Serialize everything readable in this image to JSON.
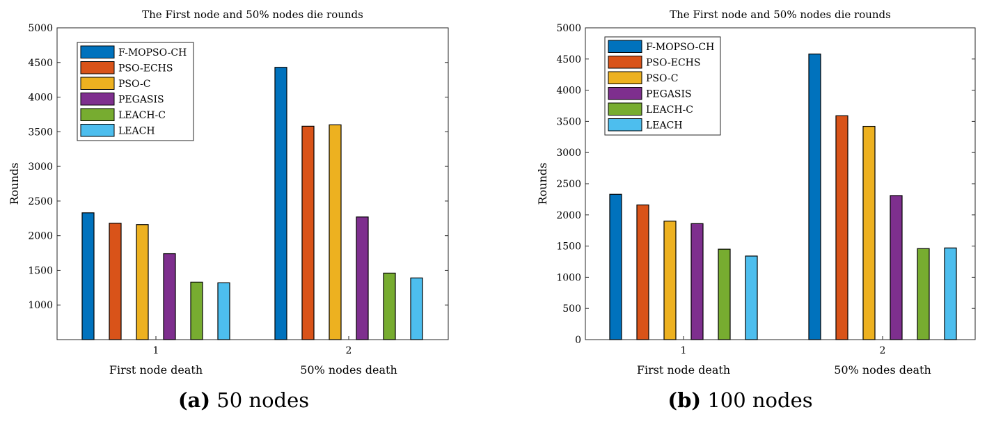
{
  "chart_data": [
    {
      "type": "bar",
      "title": "The First node and 50% nodes die rounds",
      "xlabel": "",
      "ylabel": "Rounds",
      "ylim": [
        500,
        5000
      ],
      "yticks": [
        1000,
        1500,
        2000,
        2500,
        3000,
        3500,
        4000,
        4500,
        5000
      ],
      "categories": [
        "1",
        "2"
      ],
      "category_labels": [
        "First node death",
        "50% nodes death"
      ],
      "legend_position": "top-left",
      "grid": false,
      "series": [
        {
          "name": "F-MOPSO-CH",
          "color": "#0072BD",
          "values": [
            2330,
            4430
          ]
        },
        {
          "name": "PSO-ECHS",
          "color": "#D95319",
          "values": [
            2180,
            3580
          ]
        },
        {
          "name": "PSO-C",
          "color": "#EDB120",
          "values": [
            2160,
            3600
          ]
        },
        {
          "name": "PEGASIS",
          "color": "#7E2F8E",
          "values": [
            1740,
            2270
          ]
        },
        {
          "name": "LEACH-C",
          "color": "#77AC30",
          "values": [
            1330,
            1460
          ]
        },
        {
          "name": "LEACH",
          "color": "#4DBEEE",
          "values": [
            1320,
            1390
          ]
        }
      ],
      "caption_letter": "(a)",
      "caption_text": "50 nodes"
    },
    {
      "type": "bar",
      "title": "The First node and 50% nodes die rounds",
      "xlabel": "",
      "ylabel": "Rounds",
      "ylim": [
        0,
        5000
      ],
      "yticks": [
        0,
        500,
        1000,
        1500,
        2000,
        2500,
        3000,
        3500,
        4000,
        4500,
        5000
      ],
      "categories": [
        "1",
        "2"
      ],
      "category_labels": [
        "First node death",
        "50% nodes death"
      ],
      "legend_position": "top-left",
      "grid": false,
      "series": [
        {
          "name": "F-MOPSO-CH",
          "color": "#0072BD",
          "values": [
            2330,
            4580
          ]
        },
        {
          "name": "PSO-ECHS",
          "color": "#D95319",
          "values": [
            2160,
            3590
          ]
        },
        {
          "name": "PSO-C",
          "color": "#EDB120",
          "values": [
            1900,
            3420
          ]
        },
        {
          "name": "PEGASIS",
          "color": "#7E2F8E",
          "values": [
            1860,
            2310
          ]
        },
        {
          "name": "LEACH-C",
          "color": "#77AC30",
          "values": [
            1450,
            1460
          ]
        },
        {
          "name": "LEACH",
          "color": "#4DBEEE",
          "values": [
            1340,
            1470
          ]
        }
      ],
      "caption_letter": "(b)",
      "caption_text": "100 nodes"
    }
  ]
}
